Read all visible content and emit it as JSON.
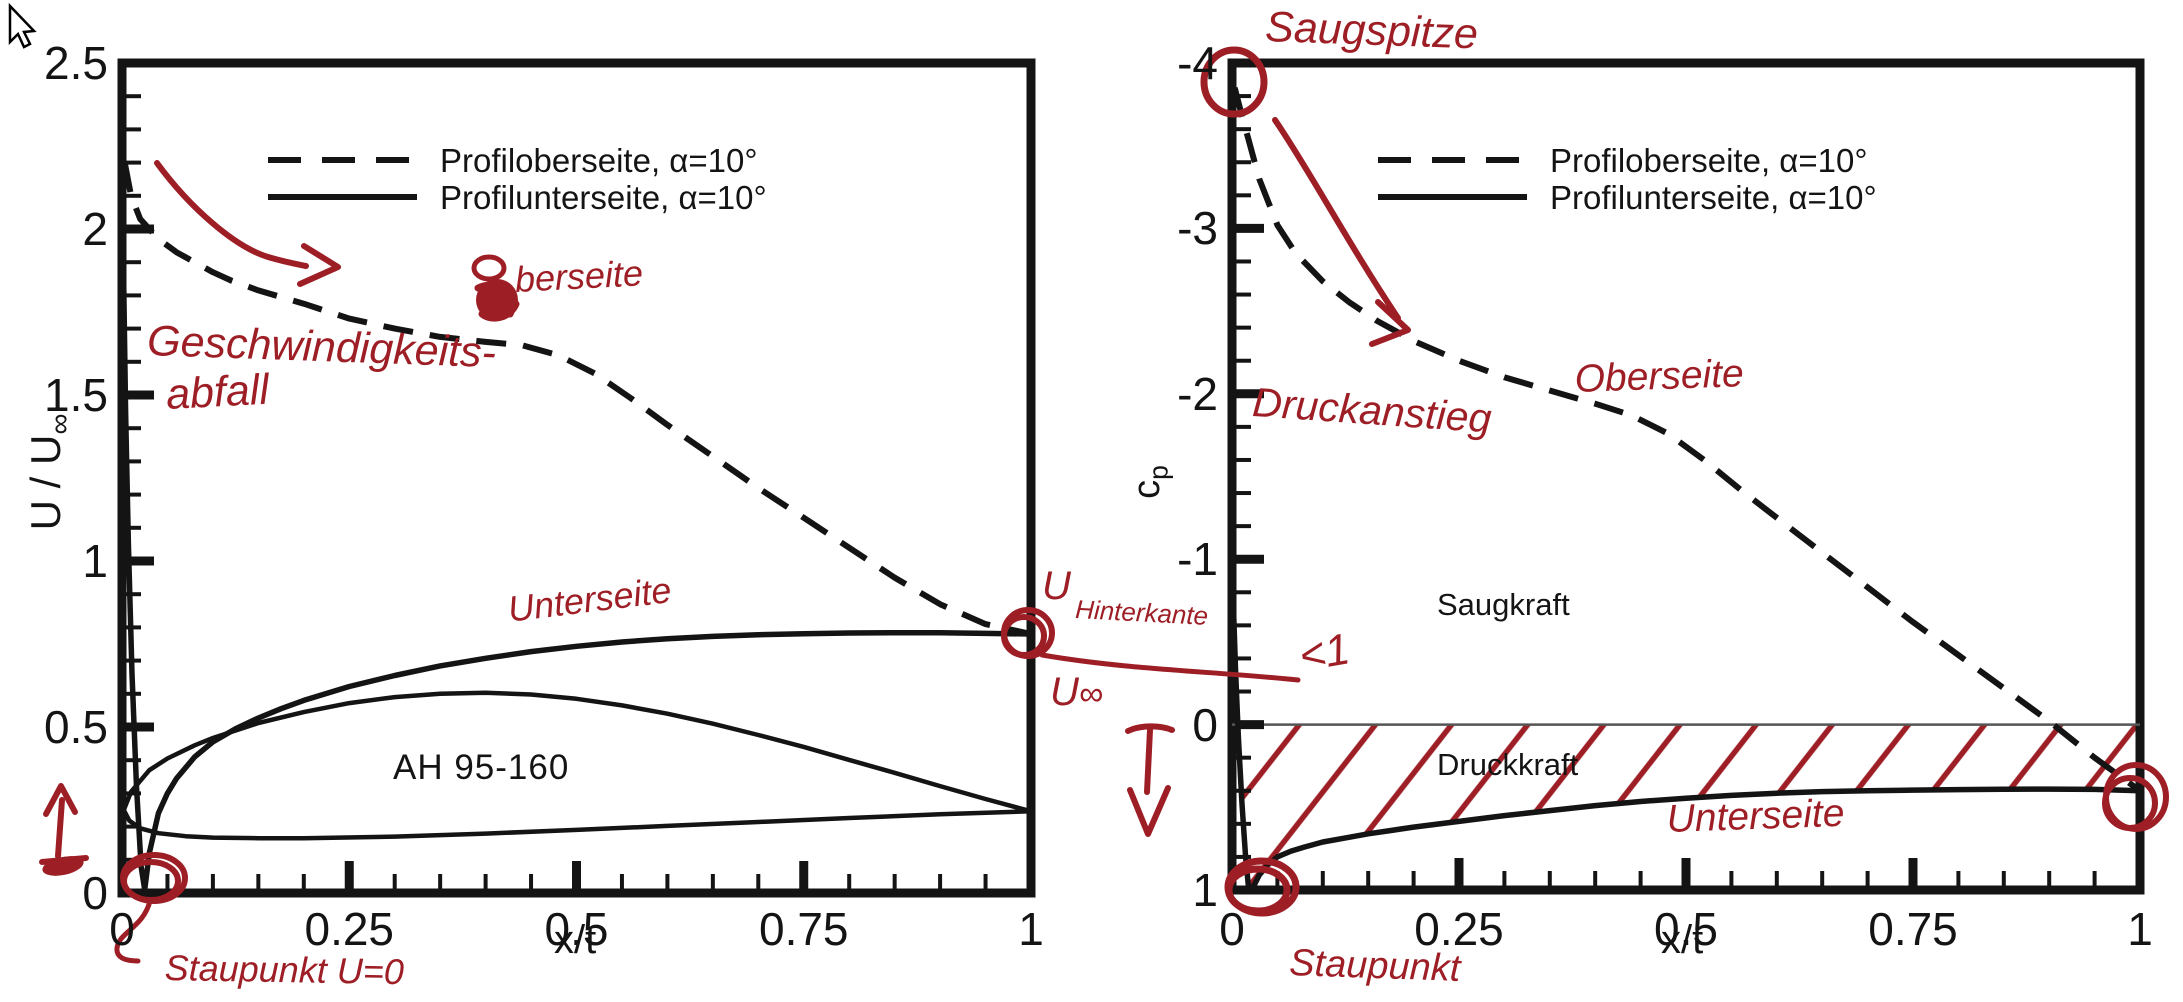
{
  "figure": {
    "background": "#ffffff",
    "ink_color": "#9e1e26",
    "line_color": "#141414",
    "cursor_icon": "arrow-pointer"
  },
  "chart_data": [
    {
      "type": "line",
      "title": "",
      "xlabel": "x/t",
      "ylabel": "U / U∞",
      "xlim": [
        0,
        1
      ],
      "ylim": [
        0,
        2.5
      ],
      "x_major_ticks": [
        "0",
        "0.25",
        "0.5",
        "0.75",
        "1"
      ],
      "x_major_values": [
        0,
        0.25,
        0.5,
        0.75,
        1
      ],
      "x_minor_step": 0.05,
      "y_major_ticks": [
        "0",
        "0.5",
        "1",
        "1.5",
        "2",
        "2.5"
      ],
      "y_major_values": [
        0,
        0.5,
        1,
        1.5,
        2,
        2.5
      ],
      "y_minor_step": 0.1,
      "grid": false,
      "legend_position": "upper center",
      "inner_label": "AH 95-160",
      "series": [
        {
          "name": "Profiloberseite, α=10°",
          "style": "dashed",
          "points": [
            [
              0.003,
              2.2
            ],
            [
              0.01,
              2.1
            ],
            [
              0.02,
              2.03
            ],
            [
              0.04,
              1.97
            ],
            [
              0.06,
              1.93
            ],
            [
              0.08,
              1.9
            ],
            [
              0.1,
              1.87
            ],
            [
              0.12,
              1.845
            ],
            [
              0.15,
              1.815
            ],
            [
              0.2,
              1.775
            ],
            [
              0.25,
              1.73
            ],
            [
              0.3,
              1.7
            ],
            [
              0.35,
              1.675
            ],
            [
              0.4,
              1.66
            ],
            [
              0.44,
              1.65
            ],
            [
              0.48,
              1.62
            ],
            [
              0.52,
              1.565
            ],
            [
              0.56,
              1.49
            ],
            [
              0.6,
              1.41
            ],
            [
              0.65,
              1.315
            ],
            [
              0.7,
              1.22
            ],
            [
              0.75,
              1.13
            ],
            [
              0.8,
              1.04
            ],
            [
              0.85,
              0.95
            ],
            [
              0.9,
              0.87
            ],
            [
              0.95,
              0.81
            ],
            [
              1.0,
              0.78
            ]
          ]
        },
        {
          "name": "Profilunterseite, α=10°",
          "style": "solid",
          "points": [
            [
              0.0015,
              1.9
            ],
            [
              0.004,
              1.45
            ],
            [
              0.007,
              1.05
            ],
            [
              0.011,
              0.66
            ],
            [
              0.016,
              0.32
            ],
            [
              0.021,
              0.08
            ],
            [
              0.025,
              0.01
            ],
            [
              0.03,
              0.12
            ],
            [
              0.04,
              0.24
            ],
            [
              0.05,
              0.3
            ],
            [
              0.06,
              0.345
            ],
            [
              0.08,
              0.41
            ],
            [
              0.1,
              0.455
            ],
            [
              0.125,
              0.495
            ],
            [
              0.15,
              0.527
            ],
            [
              0.175,
              0.555
            ],
            [
              0.2,
              0.58
            ],
            [
              0.25,
              0.622
            ],
            [
              0.3,
              0.655
            ],
            [
              0.35,
              0.684
            ],
            [
              0.4,
              0.707
            ],
            [
              0.45,
              0.727
            ],
            [
              0.5,
              0.743
            ],
            [
              0.55,
              0.756
            ],
            [
              0.6,
              0.766
            ],
            [
              0.65,
              0.773
            ],
            [
              0.7,
              0.778
            ],
            [
              0.75,
              0.781
            ],
            [
              0.8,
              0.783
            ],
            [
              0.85,
              0.784
            ],
            [
              0.9,
              0.784
            ],
            [
              0.95,
              0.782
            ],
            [
              1.0,
              0.78
            ]
          ]
        },
        {
          "name": "airfoil-contour-upper",
          "style": "solid",
          "points": [
            [
              0.002,
              0.25
            ],
            [
              0.01,
              0.305
            ],
            [
              0.03,
              0.37
            ],
            [
              0.05,
              0.405
            ],
            [
              0.08,
              0.445
            ],
            [
              0.1,
              0.467
            ],
            [
              0.15,
              0.512
            ],
            [
              0.2,
              0.545
            ],
            [
              0.25,
              0.572
            ],
            [
              0.3,
              0.59
            ],
            [
              0.35,
              0.6
            ],
            [
              0.4,
              0.603
            ],
            [
              0.45,
              0.598
            ],
            [
              0.5,
              0.585
            ],
            [
              0.55,
              0.565
            ],
            [
              0.6,
              0.54
            ],
            [
              0.65,
              0.51
            ],
            [
              0.7,
              0.476
            ],
            [
              0.75,
              0.44
            ],
            [
              0.8,
              0.401
            ],
            [
              0.85,
              0.362
            ],
            [
              0.9,
              0.322
            ],
            [
              0.95,
              0.283
            ],
            [
              1.0,
              0.246
            ]
          ]
        },
        {
          "name": "airfoil-contour-lower",
          "style": "solid",
          "points": [
            [
              0.002,
              0.25
            ],
            [
              0.008,
              0.218
            ],
            [
              0.02,
              0.195
            ],
            [
              0.04,
              0.18
            ],
            [
              0.07,
              0.171
            ],
            [
              0.1,
              0.167
            ],
            [
              0.15,
              0.165
            ],
            [
              0.2,
              0.165
            ],
            [
              0.3,
              0.17
            ],
            [
              0.4,
              0.179
            ],
            [
              0.5,
              0.19
            ],
            [
              0.6,
              0.202
            ],
            [
              0.7,
              0.214
            ],
            [
              0.8,
              0.226
            ],
            [
              0.9,
              0.237
            ],
            [
              1.0,
              0.246
            ]
          ]
        }
      ]
    },
    {
      "type": "line",
      "title": "",
      "xlabel": "x/t",
      "ylabel": "cp",
      "xlim": [
        0,
        1
      ],
      "ylim": [
        1,
        -4
      ],
      "y_axis_inverted": true,
      "x_major_ticks": [
        "0",
        "0.25",
        "0.5",
        "0.75",
        "1"
      ],
      "x_major_values": [
        0,
        0.25,
        0.5,
        0.75,
        1
      ],
      "x_minor_step": 0.05,
      "y_major_ticks": [
        "1",
        "0",
        "-1",
        "-2",
        "-3",
        "-4"
      ],
      "y_major_values": [
        1,
        0,
        -1,
        -2,
        -3,
        -4
      ],
      "y_minor_step": 0.2,
      "zero_line": true,
      "grid": false,
      "legend_position": "upper center",
      "region_labels": [
        "Saugkraft",
        "Druckkraft"
      ],
      "series": [
        {
          "name": "Profiloberseite, α=10°",
          "style": "dashed",
          "points": [
            [
              0.003,
              -3.85
            ],
            [
              0.01,
              -3.7
            ],
            [
              0.02,
              -3.5
            ],
            [
              0.03,
              -3.3
            ],
            [
              0.05,
              -3.02
            ],
            [
              0.07,
              -2.85
            ],
            [
              0.1,
              -2.68
            ],
            [
              0.13,
              -2.55
            ],
            [
              0.16,
              -2.44
            ],
            [
              0.2,
              -2.32
            ],
            [
              0.25,
              -2.2
            ],
            [
              0.3,
              -2.1
            ],
            [
              0.35,
              -2.02
            ],
            [
              0.4,
              -1.94
            ],
            [
              0.44,
              -1.87
            ],
            [
              0.48,
              -1.76
            ],
            [
              0.52,
              -1.6
            ],
            [
              0.56,
              -1.42
            ],
            [
              0.6,
              -1.25
            ],
            [
              0.65,
              -1.04
            ],
            [
              0.7,
              -0.83
            ],
            [
              0.75,
              -0.62
            ],
            [
              0.8,
              -0.42
            ],
            [
              0.85,
              -0.22
            ],
            [
              0.9,
              -0.02
            ],
            [
              0.95,
              0.2
            ],
            [
              1.0,
              0.4
            ]
          ]
        },
        {
          "name": "Profilunterseite, α=10°",
          "style": "solid",
          "points": [
            [
              0.0015,
              -0.72
            ],
            [
              0.004,
              -0.32
            ],
            [
              0.007,
              0.08
            ],
            [
              0.011,
              0.48
            ],
            [
              0.015,
              0.8
            ],
            [
              0.018,
              0.97
            ],
            [
              0.02,
              1.0
            ],
            [
              0.025,
              0.965
            ],
            [
              0.03,
              0.91
            ],
            [
              0.04,
              0.845
            ],
            [
              0.05,
              0.8
            ],
            [
              0.065,
              0.765
            ],
            [
              0.08,
              0.74
            ],
            [
              0.1,
              0.71
            ],
            [
              0.125,
              0.685
            ],
            [
              0.15,
              0.66
            ],
            [
              0.175,
              0.64
            ],
            [
              0.2,
              0.62
            ],
            [
              0.25,
              0.585
            ],
            [
              0.3,
              0.55
            ],
            [
              0.35,
              0.52
            ],
            [
              0.4,
              0.49
            ],
            [
              0.45,
              0.465
            ],
            [
              0.5,
              0.445
            ],
            [
              0.55,
              0.428
            ],
            [
              0.6,
              0.415
            ],
            [
              0.65,
              0.405
            ],
            [
              0.7,
              0.4
            ],
            [
              0.75,
              0.396
            ],
            [
              0.8,
              0.393
            ],
            [
              0.85,
              0.391
            ],
            [
              0.9,
              0.39
            ],
            [
              0.95,
              0.392
            ],
            [
              1.0,
              0.4
            ]
          ]
        }
      ]
    }
  ],
  "legend": {
    "dashed_label": "Profiloberseite, α=10°",
    "solid_label": "Profilunterseite, α=10°"
  },
  "labels": {
    "left_ylabel_main": "U / U",
    "left_ylabel_sub": "∞",
    "right_ylabel_main": "c",
    "right_ylabel_sub": "p",
    "xlabel_left": "x/t",
    "xlabel_right": "x/t",
    "airfoil_name": "AH 95-160",
    "saugkraft": "Saugkraft",
    "druckkraft": "Druckkraft"
  },
  "handwritten": {
    "geschwindigkeits": "Geschwindigkeits-",
    "abfall": "abfall",
    "oberseite_o": "O",
    "oberseite_rest": "berseite",
    "unterseite_left": "Unterseite",
    "u_hinterkante_u": "U",
    "u_hinterkante_sub": "Hinterkante",
    "u_inf_main": "U",
    "u_inf_sub": "∞",
    "less_than_one": "<1",
    "staupunkt_left": "Staupunkt U=0",
    "saugspitze": "Saugspitze",
    "druckanstieg": "Druckanstieg",
    "oberseite_right": "Oberseite",
    "unterseite_right": "Unterseite",
    "staupunkt_right": "Staupunkt"
  }
}
